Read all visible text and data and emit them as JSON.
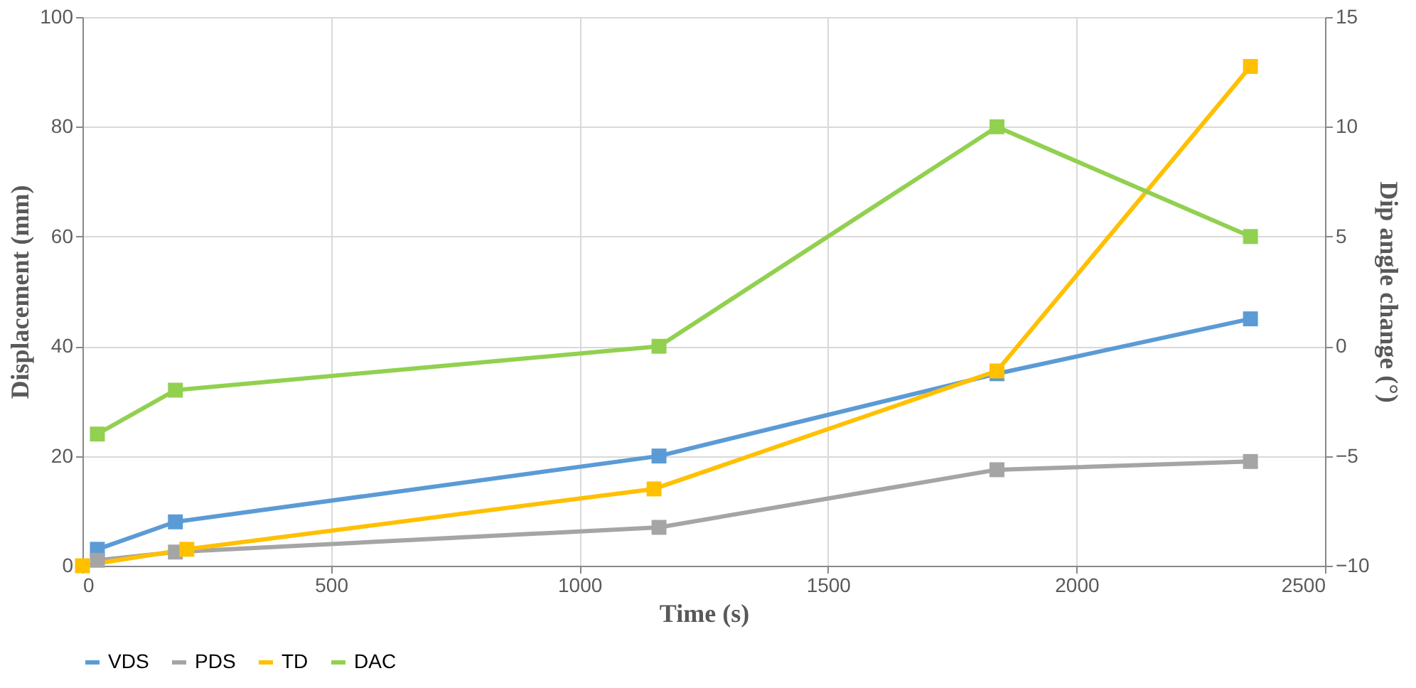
{
  "chart_data": {
    "type": "line",
    "xlabel": "Time (s)",
    "ylabel": "Displacement (mm)",
    "y2label": "Dip angle change (°)",
    "xlim": [
      0,
      2500
    ],
    "xticks": [
      0,
      500,
      1000,
      1500,
      2000,
      2500
    ],
    "ylim": [
      0,
      100
    ],
    "yticks": [
      0,
      20,
      40,
      60,
      80,
      100
    ],
    "y2lim": [
      -10,
      15
    ],
    "y2ticks": [
      -10,
      -5,
      0,
      5,
      10,
      15
    ],
    "grid": true,
    "legend": "bottom",
    "marker": "square",
    "line_style": "solid",
    "series": [
      {
        "name": "VDS",
        "color": "#5b9bd5",
        "x": [
          30,
          187,
          1160,
          1840,
          2350
        ],
        "values": [
          3,
          8,
          20,
          35,
          45
        ]
      },
      {
        "name": "PDS",
        "color": "#a5a5a5",
        "x": [
          30,
          187,
          1160,
          1840,
          2350
        ],
        "values": [
          1,
          2.5,
          7,
          17.5,
          19
        ]
      },
      {
        "name": "TD",
        "color": "#ffc000",
        "x": [
          0,
          210,
          1150,
          1840,
          2350
        ],
        "values": [
          0,
          3,
          14,
          35.5,
          91
        ]
      },
      {
        "name": "DAC",
        "color": "#92d050",
        "axis": "y2",
        "x": [
          30,
          187,
          1160,
          1840,
          2350
        ],
        "values": [
          -4,
          -2,
          0,
          10,
          5
        ]
      }
    ]
  }
}
